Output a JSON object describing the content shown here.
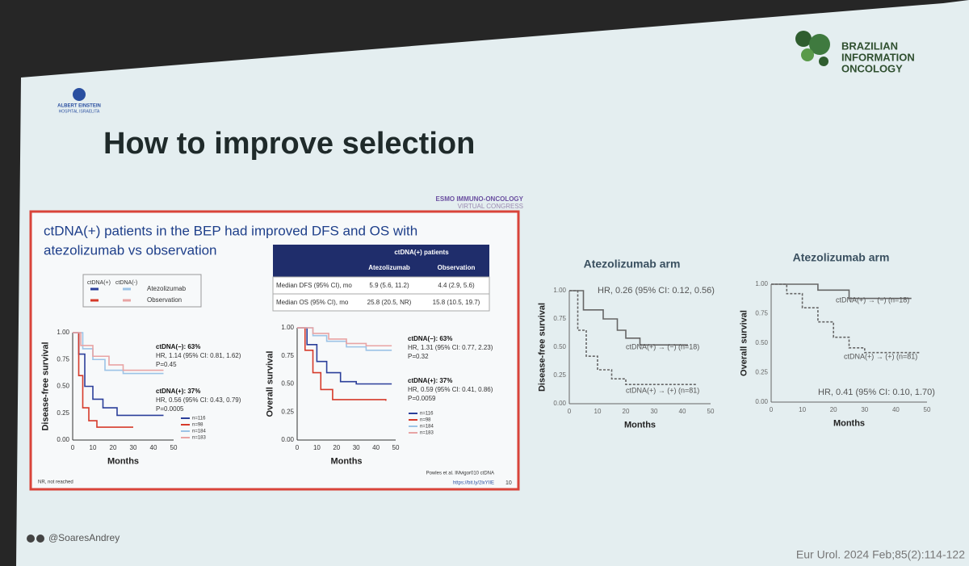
{
  "slide": {
    "title": "How to improve selection",
    "logo_left": [
      "ALBERT EINSTEIN",
      "HOSPITAL ISRAELITA"
    ],
    "logo_right": [
      "BRAZILIAN",
      "INFORMATION",
      "ONCOLOGY"
    ],
    "handle": "@SoaresAndrey",
    "citation": "Eur Urol. 2024 Feb;85(2):114-122"
  },
  "embedded_slide": {
    "header": "ESMO IMMUNO-ONCOLOGY",
    "subheader": "VIRTUAL CONGRESS",
    "title": [
      "ctDNA(+) patients in the BEP had improved DFS and OS with",
      "atezolizumab vs observation"
    ],
    "legend": {
      "headers": [
        "ctDNA(+)",
        "ctDNA(-)"
      ],
      "rows": [
        "Atezolizumab",
        "Observation"
      ]
    },
    "table": {
      "group_header": "ctDNA(+) patients",
      "columns": [
        "Atezolizumab",
        "Observation"
      ],
      "rows": [
        [
          "Median DFS (95% CI), mo",
          "5.9 (5.6, 11.2)",
          "4.4 (2.9, 5.6)"
        ],
        [
          "Median OS (95% CI), mo",
          "25.8 (20.5, NR)",
          "15.8 (10.5, 19.7)"
        ]
      ]
    },
    "charts": [
      {
        "y_label": "Disease-free survival",
        "x_label": "Months",
        "yticks": [
          "0.00",
          "0.25",
          "0.50",
          "0.75",
          "1.00"
        ],
        "xticks": [
          "0",
          "10",
          "20",
          "30",
          "40",
          "50"
        ],
        "annotations": [
          [
            "ctDNA(−): 63%",
            "HR, 1.14 (95% CI: 0.81, 1.62)",
            "P=0.45"
          ],
          [
            "ctDNA(+): 37%",
            "HR, 0.56 (95% CI: 0.43, 0.79)",
            "P=0.0005"
          ]
        ],
        "n_labels": [
          "n=116",
          "n=98",
          "n=184",
          "n=183"
        ]
      },
      {
        "y_label": "Overall survival",
        "x_label": "Months",
        "yticks": [
          "0.00",
          "0.25",
          "0.50",
          "0.75",
          "1.00"
        ],
        "xticks": [
          "0",
          "10",
          "20",
          "30",
          "40",
          "50"
        ],
        "annotations": [
          [
            "ctDNA(−): 63%",
            "HR, 1.31 (95% CI: 0.77, 2.23)",
            "P=0.32"
          ],
          [
            "ctDNA(+): 37%",
            "HR, 0.59 (95% CI: 0.41, 0.86)",
            "P=0.0059"
          ]
        ],
        "n_labels": [
          "n=116",
          "n=98",
          "n=184",
          "n=183"
        ]
      }
    ],
    "footnote": "NR, not reached",
    "reference": [
      "Powles et al. IMvigor010 ctDNA",
      "https://bit.ly/2lxYIIE"
    ],
    "page": "10"
  },
  "right_charts": [
    {
      "title": "Atezolizumab arm",
      "y_label": "Disease-free survival",
      "x_label": "Months",
      "hr": "HR, 0.26 (95% CI: 0.12, 0.56)",
      "curves": [
        "ctDNA(+) → (−) (n=18)",
        "ctDNA(+) → (+) (n=81)"
      ],
      "yticks": [
        "0.00",
        "0.25",
        "0.50",
        "0.75",
        "1.00"
      ],
      "xticks": [
        "0",
        "10",
        "20",
        "30",
        "40",
        "50"
      ]
    },
    {
      "title": "Atezolizumab arm",
      "y_label": "Overall survival",
      "x_label": "Months",
      "hr": "HR, 0.41 (95% CI: 0.10, 1.70)",
      "curves": [
        "ctDNA(+) → (−) (n=18)",
        "ctDNA(+) → (+) (n=81)"
      ],
      "yticks": [
        "0.00",
        "0.25",
        "0.50",
        "0.75",
        "1.00"
      ],
      "xticks": [
        "0",
        "10",
        "20",
        "30",
        "40",
        "50"
      ]
    }
  ]
}
